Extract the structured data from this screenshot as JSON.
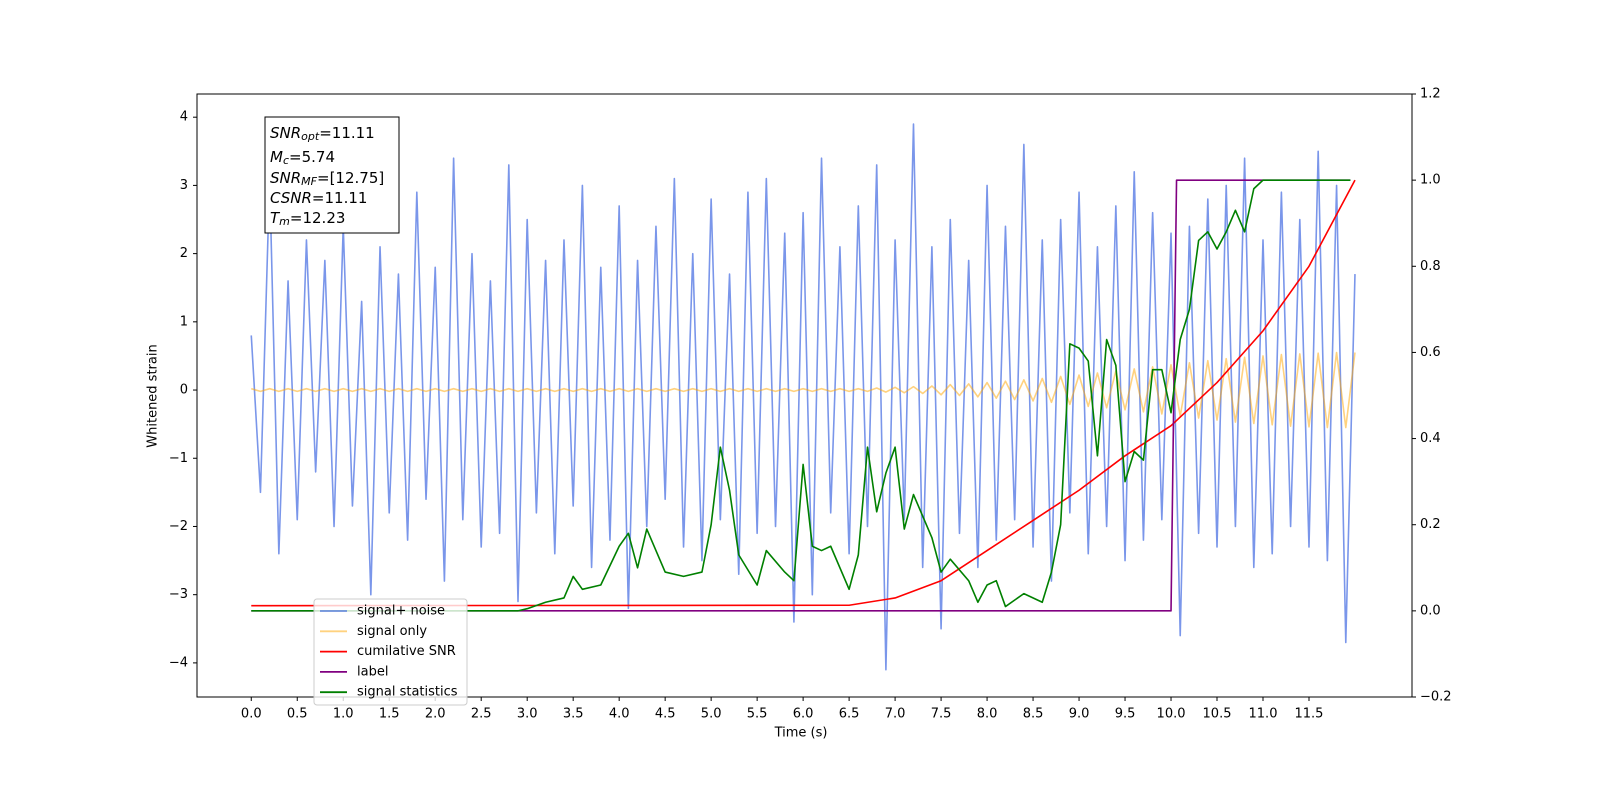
{
  "chart_data": {
    "type": "line",
    "xlabel": "Time (s)",
    "ylabel": "Whitened strain",
    "xlim": [
      -0.59,
      12.62
    ],
    "ylim": [
      -4.5,
      4.34
    ],
    "y2lim": [
      -0.2,
      1.2
    ],
    "xticks": [
      {
        "value": 0,
        "label": "0.0"
      },
      {
        "value": 0.5,
        "label": "0.5"
      },
      {
        "value": 1,
        "label": "1.0"
      },
      {
        "value": 1.5,
        "label": "1.5"
      },
      {
        "value": 2,
        "label": "2.0"
      },
      {
        "value": 2.5,
        "label": "2.5"
      },
      {
        "value": 3,
        "label": "3.0"
      },
      {
        "value": 3.5,
        "label": "3.5"
      },
      {
        "value": 4,
        "label": "4.0"
      },
      {
        "value": 4.5,
        "label": "4.5"
      },
      {
        "value": 5,
        "label": "5.0"
      },
      {
        "value": 5.5,
        "label": "5.5"
      },
      {
        "value": 6,
        "label": "6.0"
      },
      {
        "value": 6.5,
        "label": "6.5"
      },
      {
        "value": 7,
        "label": "7.0"
      },
      {
        "value": 7.5,
        "label": "7.5"
      },
      {
        "value": 8,
        "label": "8.0"
      },
      {
        "value": 8.5,
        "label": "8.5"
      },
      {
        "value": 9,
        "label": "9.0"
      },
      {
        "value": 9.5,
        "label": "9.5"
      },
      {
        "value": 10,
        "label": "10.0"
      },
      {
        "value": 10.5,
        "label": "10.5"
      },
      {
        "value": 11,
        "label": "11.0"
      },
      {
        "value": 11.5,
        "label": "11.5"
      }
    ],
    "yticks": [
      {
        "value": -4,
        "label": "−4"
      },
      {
        "value": -3,
        "label": "−3"
      },
      {
        "value": -2,
        "label": "−2"
      },
      {
        "value": -1,
        "label": "−1"
      },
      0,
      1,
      2,
      3,
      4
    ],
    "y2ticks": [
      {
        "value": -0.2,
        "label": "−0.2"
      },
      {
        "value": 0,
        "label": "0.0"
      },
      {
        "value": 0.2,
        "label": "0.2"
      },
      {
        "value": 0.4,
        "label": "0.4"
      },
      {
        "value": 0.6,
        "label": "0.6"
      },
      {
        "value": 0.8,
        "label": "0.8"
      },
      {
        "value": 1,
        "label": "1.0"
      },
      {
        "value": 1.2,
        "label": "1.2"
      }
    ],
    "grid": false,
    "legend": "lower left",
    "annotations": [
      {
        "base": "SNR",
        "sub": "opt",
        "rest": "=11.11"
      },
      {
        "base": "M",
        "sub": "c",
        "rest": "=5.74"
      },
      {
        "base": "SNR",
        "sub": "MF",
        "rest": "=[12.75]"
      },
      {
        "base": "CSNR",
        "sub": "",
        "rest": "=11.11"
      },
      {
        "base": "T",
        "sub": "m",
        "rest": "=12.23"
      }
    ],
    "x": [
      0,
      0.1,
      0.2,
      0.3,
      0.4,
      0.5,
      0.6,
      0.7,
      0.8,
      0.9,
      1,
      1.1,
      1.2,
      1.3,
      1.4,
      1.5,
      1.6,
      1.7,
      1.8,
      1.9,
      2,
      2.1,
      2.2,
      2.3,
      2.4,
      2.5,
      2.6,
      2.7,
      2.8,
      2.9,
      3,
      3.1,
      3.2,
      3.3,
      3.4,
      3.5,
      3.6,
      3.7,
      3.8,
      3.9,
      4,
      4.1,
      4.2,
      4.3,
      4.4,
      4.5,
      4.6,
      4.7,
      4.8,
      4.9,
      5,
      5.1,
      5.2,
      5.3,
      5.4,
      5.5,
      5.6,
      5.7,
      5.8,
      5.9,
      6,
      6.1,
      6.2,
      6.3,
      6.4,
      6.5,
      6.6,
      6.7,
      6.8,
      6.9,
      7,
      7.1,
      7.2,
      7.3,
      7.4,
      7.5,
      7.6,
      7.7,
      7.8,
      7.9,
      8,
      8.1,
      8.2,
      8.3,
      8.4,
      8.5,
      8.6,
      8.7,
      8.8,
      8.9,
      9,
      9.1,
      9.2,
      9.3,
      9.4,
      9.5,
      9.6,
      9.7,
      9.8,
      9.9,
      10,
      10.1,
      10.2,
      10.3,
      10.4,
      10.5,
      10.6,
      10.7,
      10.8,
      10.9,
      11,
      11.1,
      11.2,
      11.3,
      11.4,
      11.5,
      11.6,
      11.7,
      11.8,
      11.9,
      12
    ],
    "series": [
      {
        "name": "signal+ noise",
        "color": "#4169e1",
        "alpha": 0.7,
        "values": [
          0.8,
          -1.5,
          3.1,
          -2.4,
          1.6,
          -1.9,
          2.2,
          -1.2,
          1.9,
          -2.0,
          2.4,
          -1.7,
          1.3,
          -3.0,
          2.1,
          -1.8,
          1.7,
          -2.2,
          2.9,
          -1.6,
          1.8,
          -2.8,
          3.4,
          -1.9,
          2.0,
          -2.3,
          1.6,
          -2.1,
          3.3,
          -3.1,
          2.5,
          -1.8,
          1.9,
          -2.4,
          2.2,
          -1.7,
          3.0,
          -2.6,
          1.8,
          -2.2,
          2.7,
          -3.2,
          1.9,
          -2.0,
          2.4,
          -1.6,
          3.1,
          -2.3,
          2.0,
          -2.5,
          2.8,
          -1.9,
          1.7,
          -2.7,
          2.9,
          -2.1,
          3.1,
          -2.0,
          2.3,
          -3.4,
          2.6,
          -3.0,
          3.4,
          -1.8,
          2.1,
          -2.4,
          2.7,
          -2.0,
          3.3,
          -4.1,
          2.2,
          -1.9,
          3.9,
          -2.6,
          2.1,
          -3.5,
          2.5,
          -2.1,
          1.9,
          -2.6,
          3.0,
          -2.2,
          2.4,
          -1.9,
          3.6,
          -2.3,
          2.2,
          -2.8,
          2.5,
          -1.8,
          2.9,
          -2.4,
          2.1,
          -2.0,
          2.7,
          -2.5,
          3.2,
          -2.2,
          2.6,
          -1.9,
          2.3,
          -3.6,
          2.4,
          -2.1,
          2.8,
          -2.3,
          3.0,
          -2.0,
          3.4,
          -2.6,
          2.2,
          -2.4,
          2.9,
          -2.0,
          2.5,
          -2.3,
          3.5,
          -2.5,
          3.0,
          -3.7,
          1.7
        ]
      },
      {
        "name": "signal only",
        "color": "#ffa500",
        "alpha": 0.5,
        "values": [
          0.02,
          -0.02,
          0.02,
          -0.02,
          0.02,
          -0.02,
          0.02,
          -0.02,
          0.02,
          -0.02,
          0.02,
          -0.02,
          0.02,
          -0.02,
          0.02,
          -0.02,
          0.02,
          -0.02,
          0.02,
          -0.02,
          0.02,
          -0.02,
          0.02,
          -0.02,
          0.02,
          -0.02,
          0.02,
          -0.02,
          0.02,
          -0.02,
          0.02,
          -0.02,
          0.02,
          -0.02,
          0.02,
          -0.02,
          0.02,
          -0.02,
          0.02,
          -0.02,
          0.02,
          -0.02,
          0.02,
          -0.02,
          0.02,
          -0.02,
          0.02,
          -0.02,
          0.02,
          -0.02,
          0.02,
          -0.02,
          0.02,
          -0.02,
          0.02,
          -0.02,
          0.02,
          -0.02,
          0.02,
          -0.02,
          0.02,
          -0.02,
          0.02,
          -0.02,
          0.02,
          -0.02,
          0.02,
          -0.02,
          0.03,
          -0.03,
          0.04,
          -0.04,
          0.05,
          -0.05,
          0.06,
          -0.07,
          0.08,
          -0.08,
          0.09,
          -0.1,
          0.11,
          -0.12,
          0.13,
          -0.14,
          0.15,
          -0.16,
          0.17,
          -0.18,
          0.2,
          -0.21,
          0.22,
          -0.24,
          0.25,
          -0.26,
          0.28,
          -0.29,
          0.31,
          -0.32,
          0.34,
          -0.35,
          0.37,
          -0.38,
          0.4,
          -0.41,
          0.43,
          -0.44,
          0.46,
          -0.47,
          0.48,
          -0.49,
          0.5,
          -0.51,
          0.52,
          -0.53,
          0.53,
          -0.54,
          0.54,
          -0.55,
          0.55,
          -0.55,
          0.55
        ]
      },
      {
        "name": "cumilative SNR",
        "color": "#ff0000",
        "axis": "y2",
        "x": [
          0,
          6.5,
          7,
          7.5,
          8,
          8.5,
          9,
          9.5,
          10,
          10.5,
          11,
          11.5,
          12
        ],
        "values": [
          0.012,
          0.013,
          0.03,
          0.07,
          0.14,
          0.21,
          0.28,
          0.36,
          0.43,
          0.53,
          0.65,
          0.8,
          1.0
        ]
      },
      {
        "name": "label",
        "color": "#800080",
        "axis": "y2",
        "x": [
          0,
          10.0,
          10.06,
          11.95
        ],
        "values": [
          0,
          0,
          1,
          1
        ]
      },
      {
        "name": "signal statistics",
        "color": "#008000",
        "axis": "y2",
        "x": [
          0,
          2.9,
          3.0,
          3.2,
          3.4,
          3.5,
          3.6,
          3.8,
          4.0,
          4.1,
          4.2,
          4.3,
          4.5,
          4.7,
          4.9,
          5.0,
          5.1,
          5.2,
          5.3,
          5.5,
          5.6,
          5.8,
          5.9,
          6.0,
          6.1,
          6.2,
          6.3,
          6.5,
          6.6,
          6.7,
          6.8,
          6.9,
          7.0,
          7.1,
          7.2,
          7.4,
          7.5,
          7.6,
          7.8,
          7.9,
          8.0,
          8.1,
          8.2,
          8.4,
          8.6,
          8.7,
          8.8,
          8.9,
          9.0,
          9.1,
          9.2,
          9.3,
          9.4,
          9.5,
          9.6,
          9.7,
          9.8,
          9.9,
          10.0,
          10.1,
          10.2,
          10.3,
          10.4,
          10.5,
          10.6,
          10.7,
          10.8,
          10.9,
          11.0,
          11.95
        ],
        "values": [
          0,
          0,
          0.005,
          0.02,
          0.03,
          0.08,
          0.05,
          0.06,
          0.15,
          0.18,
          0.1,
          0.19,
          0.09,
          0.08,
          0.09,
          0.2,
          0.38,
          0.28,
          0.13,
          0.06,
          0.14,
          0.09,
          0.07,
          0.34,
          0.15,
          0.14,
          0.15,
          0.05,
          0.13,
          0.38,
          0.23,
          0.32,
          0.38,
          0.19,
          0.27,
          0.17,
          0.09,
          0.12,
          0.07,
          0.02,
          0.06,
          0.07,
          0.01,
          0.04,
          0.02,
          0.09,
          0.2,
          0.62,
          0.61,
          0.58,
          0.36,
          0.63,
          0.57,
          0.3,
          0.37,
          0.35,
          0.56,
          0.56,
          0.46,
          0.63,
          0.7,
          0.86,
          0.88,
          0.84,
          0.88,
          0.93,
          0.88,
          0.98,
          1.0,
          1.0
        ]
      }
    ]
  }
}
